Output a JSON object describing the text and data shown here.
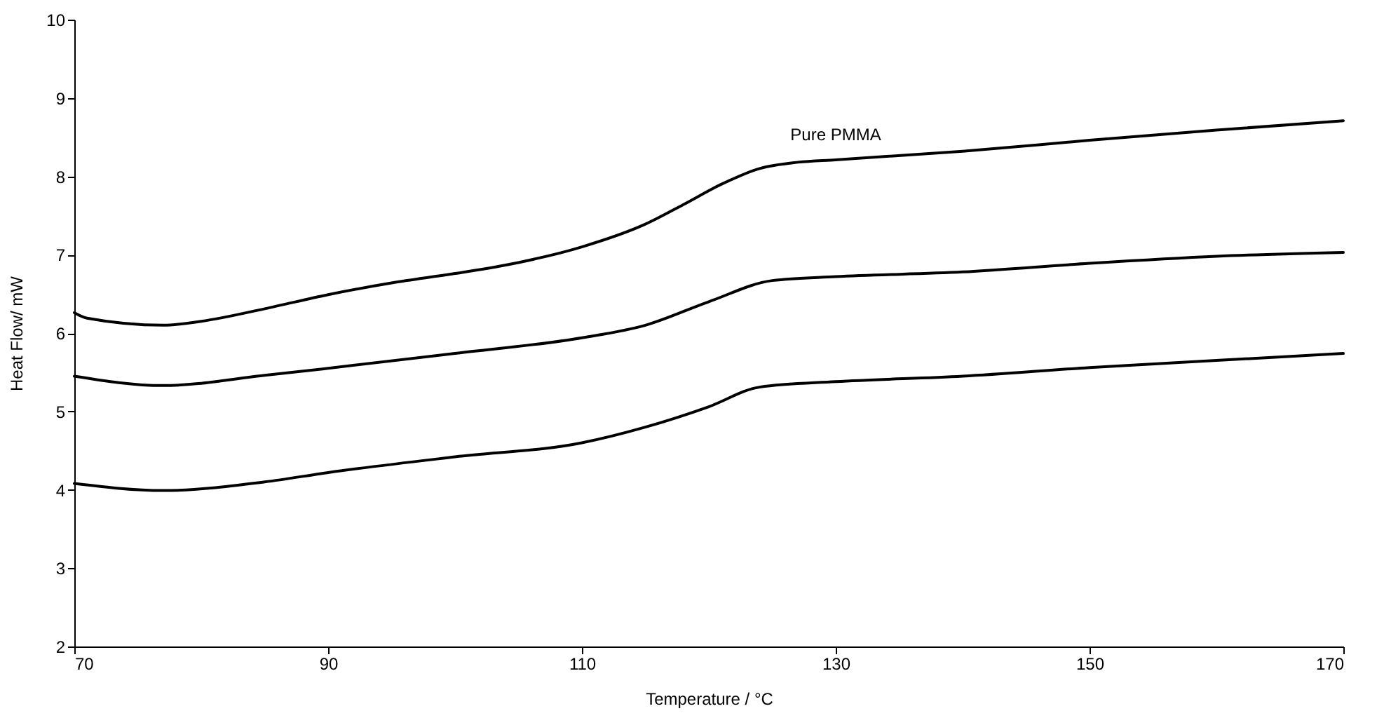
{
  "chart_data": {
    "type": "line",
    "xlabel": "Temperature / °C",
    "ylabel": "Heat Flow/ mW",
    "xlim": [
      70,
      170
    ],
    "ylim": [
      2,
      10
    ],
    "xticks": [
      70,
      90,
      110,
      130,
      150,
      170
    ],
    "yticks": [
      2,
      3,
      4,
      5,
      6,
      7,
      8,
      9,
      10
    ],
    "grid": false,
    "marker": "none",
    "line_style": "solid",
    "series": [
      {
        "name": "Pure PMMA",
        "color": "#000000",
        "x": [
          70,
          71,
          77,
          80,
          85,
          90,
          95,
          100,
          105,
          110,
          115,
          118,
          121,
          124,
          127,
          130,
          140,
          150,
          160,
          170
        ],
        "values": [
          6.26,
          6.19,
          6.1,
          6.15,
          6.31,
          6.49,
          6.64,
          6.76,
          6.9,
          7.1,
          7.39,
          7.64,
          7.9,
          8.1,
          8.18,
          8.21,
          8.32,
          8.46,
          8.59,
          8.71
        ]
      },
      {
        "color": "#000000",
        "x": [
          70,
          77,
          85,
          90,
          100,
          110,
          115,
          120,
          125,
          130,
          140,
          150,
          160,
          170
        ],
        "values": [
          5.45,
          5.33,
          5.46,
          5.55,
          5.74,
          5.94,
          6.1,
          6.4,
          6.67,
          6.72,
          6.78,
          6.89,
          6.98,
          7.03
        ]
      },
      {
        "color": "#000000",
        "x": [
          70,
          77,
          85,
          90,
          100,
          110,
          115,
          120,
          124,
          130,
          140,
          150,
          160,
          170
        ],
        "values": [
          4.08,
          3.99,
          4.1,
          4.22,
          4.42,
          4.6,
          4.8,
          5.06,
          5.31,
          5.38,
          5.45,
          5.56,
          5.65,
          5.74
        ]
      }
    ]
  }
}
